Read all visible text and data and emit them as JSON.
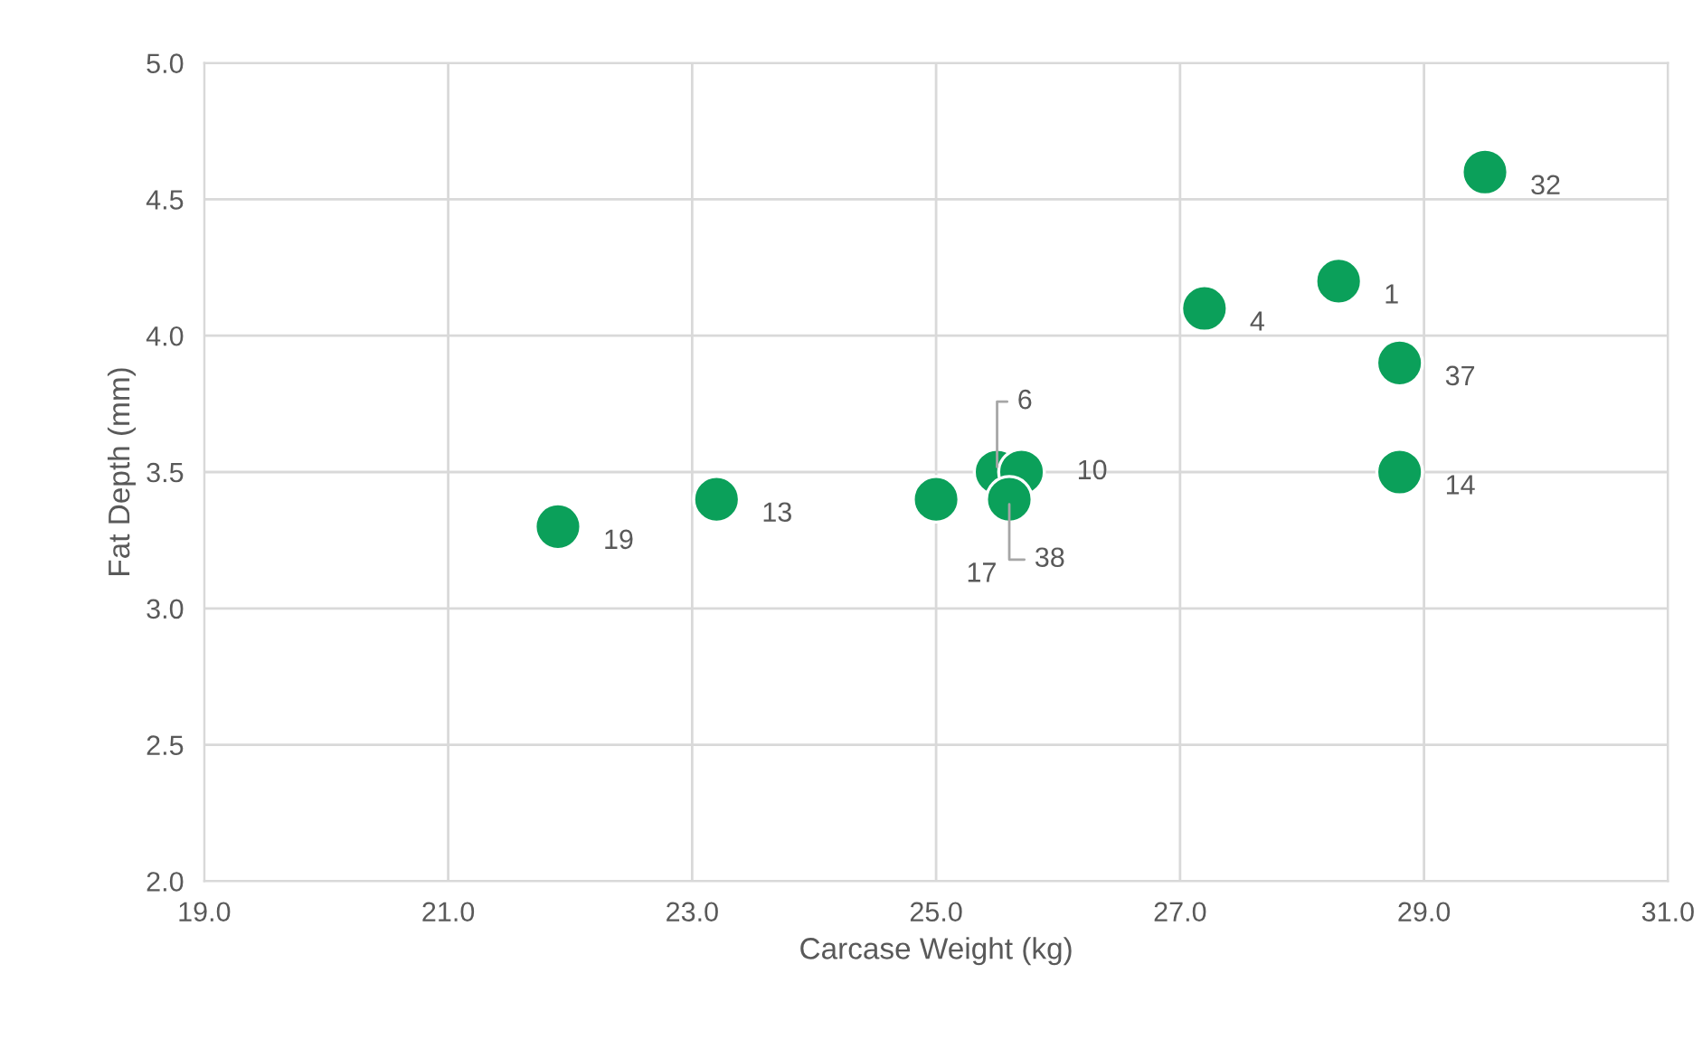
{
  "chart_data": {
    "type": "scatter",
    "xlabel": "Carcase Weight (kg)",
    "ylabel": "Fat Depth (mm)",
    "series": [
      {
        "color": "#0ba05a",
        "x": [
          21.9,
          23.2,
          25.0,
          25.5,
          25.7,
          25.6,
          27.2,
          28.3,
          29.5,
          28.8,
          28.8
        ],
        "values": [
          3.3,
          3.4,
          3.4,
          3.5,
          3.5,
          3.4,
          4.1,
          4.2,
          4.6,
          3.9,
          3.5
        ]
      }
    ],
    "annotations": [
      {
        "text": "19",
        "x": 21.9,
        "y": 3.3
      },
      {
        "text": "13",
        "x": 23.2,
        "y": 3.4
      },
      {
        "text": "17",
        "x": 25.0,
        "y": 3.4
      },
      {
        "text": "6",
        "x": 25.5,
        "y": 3.5
      },
      {
        "text": "10",
        "x": 25.7,
        "y": 3.5
      },
      {
        "text": "38",
        "x": 25.6,
        "y": 3.4
      },
      {
        "text": "4",
        "x": 27.2,
        "y": 4.1
      },
      {
        "text": "1",
        "x": 28.3,
        "y": 4.2
      },
      {
        "text": "32",
        "x": 29.5,
        "y": 4.6
      },
      {
        "text": "37",
        "x": 28.8,
        "y": 3.9
      },
      {
        "text": "14",
        "x": 28.8,
        "y": 3.5
      }
    ],
    "xlim": [
      19.0,
      31.0
    ],
    "xticks": [
      {
        "value": 19,
        "label": "19.0"
      },
      {
        "value": 21,
        "label": "21.0"
      },
      {
        "value": 23,
        "label": "23.0"
      },
      {
        "value": 25,
        "label": "25.0"
      },
      {
        "value": 27,
        "label": "27.0"
      },
      {
        "value": 29,
        "label": "29.0"
      },
      {
        "value": 31,
        "label": "31.0"
      }
    ],
    "ylim": [
      2.0,
      5.0
    ],
    "yticks": [
      {
        "value": 2,
        "label": "2.0"
      },
      {
        "value": 2.5,
        "label": "2.5"
      },
      {
        "value": 3,
        "label": "3.0"
      },
      {
        "value": 3.5,
        "label": "3.5"
      },
      {
        "value": 4,
        "label": "4.0"
      },
      {
        "value": 4.5,
        "label": "4.5"
      },
      {
        "value": 5,
        "label": "5.0"
      }
    ],
    "grid": true,
    "marker": "circle",
    "legend": false
  }
}
